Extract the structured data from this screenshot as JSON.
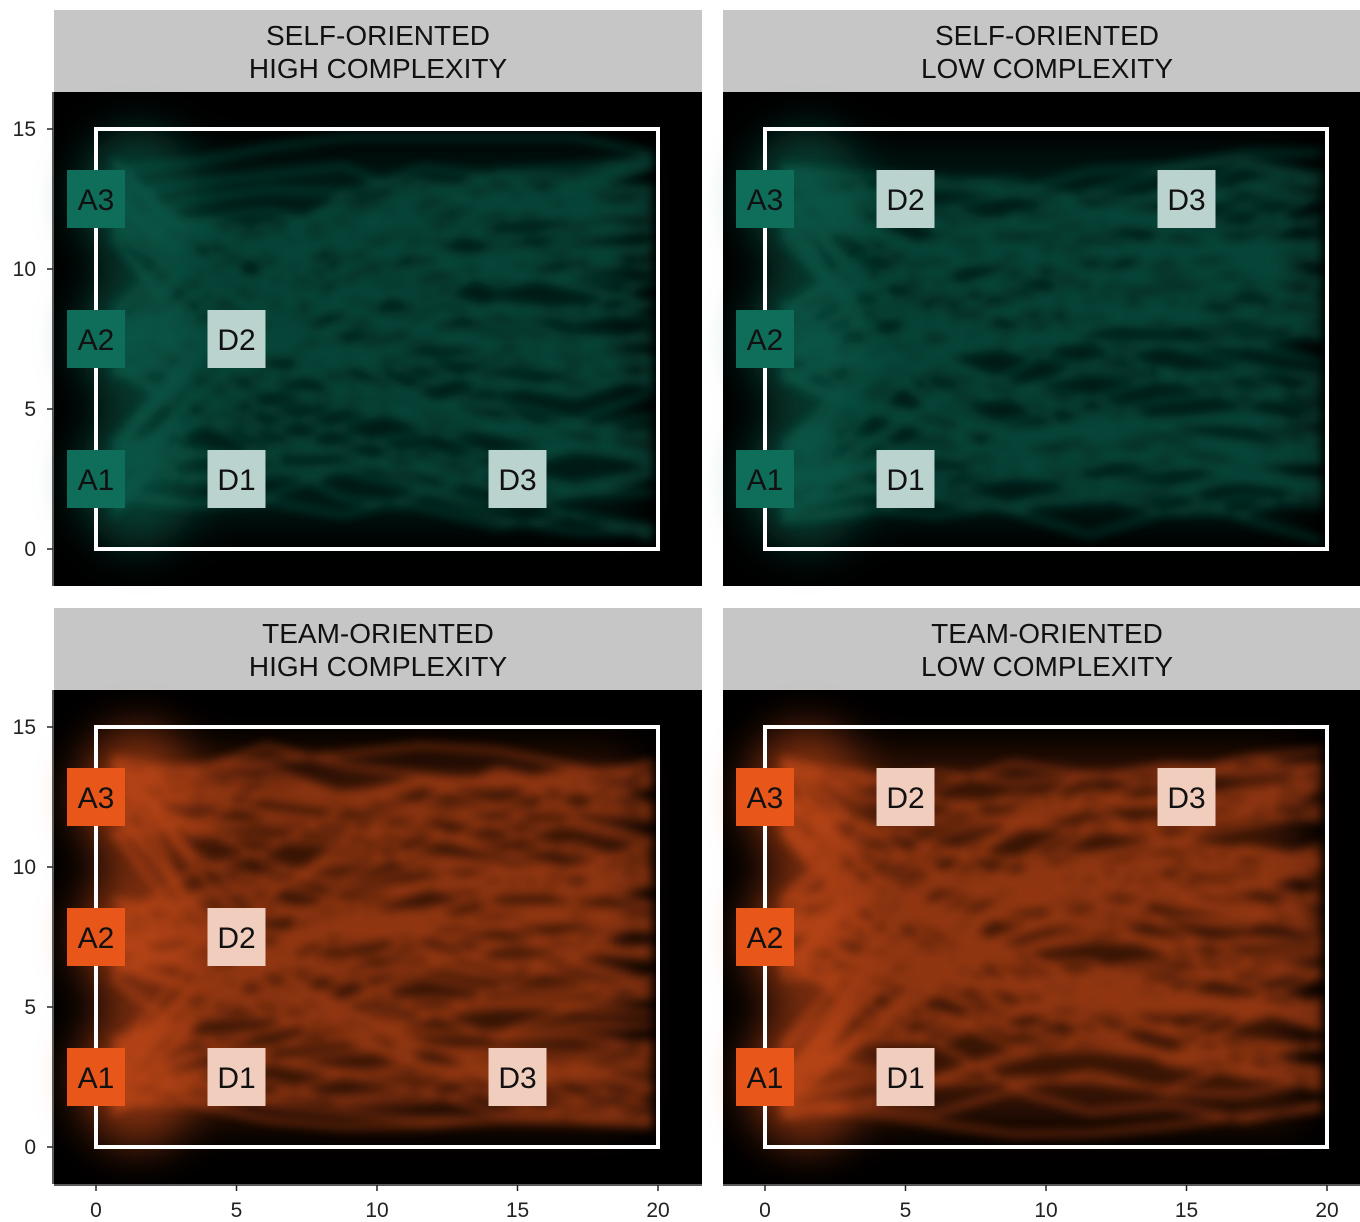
{
  "chart_data": [
    {
      "type": "heatmap",
      "strip_label": [
        "SELF-ORIENTED",
        "HIGH COMPLEXITY"
      ],
      "color": "#0e6e5a",
      "xlim": [
        0,
        20
      ],
      "ylim": [
        0,
        15
      ],
      "x_ticks": [
        "0",
        "5",
        "10",
        "15",
        "20"
      ],
      "y_ticks": [
        "0",
        "5",
        "10",
        "15"
      ],
      "markers": [
        {
          "label": "A1",
          "x": 0,
          "y": 2.5
        },
        {
          "label": "A2",
          "x": 0,
          "y": 7.5
        },
        {
          "label": "A3",
          "x": 0,
          "y": 12.5
        },
        {
          "label": "D1",
          "x": 5,
          "y": 2.5
        },
        {
          "label": "D2",
          "x": 5,
          "y": 7.5
        },
        {
          "label": "D3",
          "x": 15,
          "y": 2.5
        }
      ]
    },
    {
      "type": "heatmap",
      "strip_label": [
        "SELF-ORIENTED",
        "LOW COMPLEXITY"
      ],
      "color": "#0e6e5a",
      "xlim": [
        0,
        20
      ],
      "ylim": [
        0,
        15
      ],
      "x_ticks": [
        "0",
        "5",
        "10",
        "15",
        "20"
      ],
      "y_ticks": [
        "0",
        "5",
        "10",
        "15"
      ],
      "markers": [
        {
          "label": "A1",
          "x": 0,
          "y": 2.5
        },
        {
          "label": "A2",
          "x": 0,
          "y": 7.5
        },
        {
          "label": "A3",
          "x": 0,
          "y": 12.5
        },
        {
          "label": "D1",
          "x": 5,
          "y": 2.5
        },
        {
          "label": "D2",
          "x": 5,
          "y": 12.5
        },
        {
          "label": "D3",
          "x": 15,
          "y": 12.5
        }
      ]
    },
    {
      "type": "heatmap",
      "strip_label": [
        "TEAM-ORIENTED",
        "HIGH COMPLEXITY"
      ],
      "color": "#e8561a",
      "xlim": [
        0,
        20
      ],
      "ylim": [
        0,
        15
      ],
      "x_ticks": [
        "0",
        "5",
        "10",
        "15",
        "20"
      ],
      "y_ticks": [
        "0",
        "5",
        "10",
        "15"
      ],
      "markers": [
        {
          "label": "A1",
          "x": 0,
          "y": 2.5
        },
        {
          "label": "A2",
          "x": 0,
          "y": 7.5
        },
        {
          "label": "A3",
          "x": 0,
          "y": 12.5
        },
        {
          "label": "D1",
          "x": 5,
          "y": 2.5
        },
        {
          "label": "D2",
          "x": 5,
          "y": 7.5
        },
        {
          "label": "D3",
          "x": 15,
          "y": 2.5
        }
      ]
    },
    {
      "type": "heatmap",
      "strip_label": [
        "TEAM-ORIENTED",
        "LOW COMPLEXITY"
      ],
      "color": "#e8561a",
      "xlim": [
        0,
        20
      ],
      "ylim": [
        0,
        15
      ],
      "x_ticks": [
        "0",
        "5",
        "10",
        "15",
        "20"
      ],
      "y_ticks": [
        "0",
        "5",
        "10",
        "15"
      ],
      "markers": [
        {
          "label": "A1",
          "x": 0,
          "y": 2.5
        },
        {
          "label": "A2",
          "x": 0,
          "y": 7.5
        },
        {
          "label": "A3",
          "x": 0,
          "y": 12.5
        },
        {
          "label": "D1",
          "x": 5,
          "y": 2.5
        },
        {
          "label": "D2",
          "x": 5,
          "y": 12.5
        },
        {
          "label": "D3",
          "x": 15,
          "y": 12.5
        }
      ]
    }
  ]
}
